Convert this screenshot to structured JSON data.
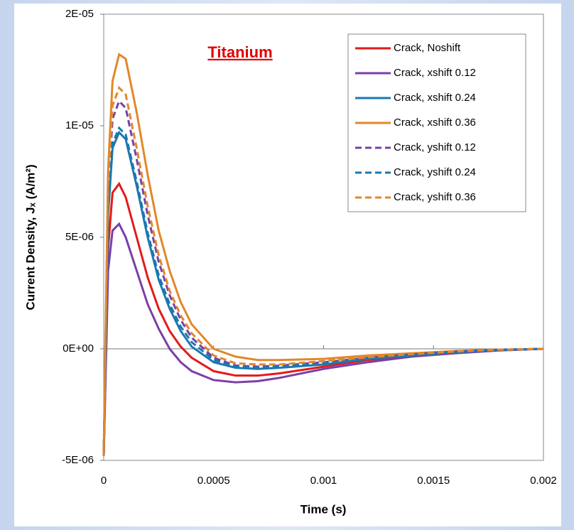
{
  "chart_data": {
    "type": "line",
    "title": "Titanium",
    "x_label": "Time (s)",
    "y_label": "Current Density, Jₓ (A/m²)",
    "x": [
      0,
      2e-05,
      4e-05,
      7e-05,
      0.0001,
      0.00015,
      0.0002,
      0.00025,
      0.0003,
      0.00035,
      0.0004,
      0.0005,
      0.0006,
      0.0007,
      0.0008,
      0.001,
      0.0012,
      0.0014,
      0.0016,
      0.0018,
      0.002
    ],
    "series": [
      {
        "name": "Crack, Noshift",
        "color": "#e31a1c",
        "dash": false,
        "values": [
          -4.8e-06,
          4.5e-06,
          7e-06,
          7.4e-06,
          6.8e-06,
          5e-06,
          3.2e-06,
          1.8e-06,
          8e-07,
          1e-07,
          -4e-07,
          -1e-06,
          -1.2e-06,
          -1.2e-06,
          -1.1e-06,
          -8e-07,
          -5e-07,
          -3e-07,
          -1.5e-07,
          -5e-08,
          0
        ]
      },
      {
        "name": "Crack, xshift 0.12",
        "color": "#7a3fa8",
        "dash": false,
        "values": [
          -4.8e-06,
          3.5e-06,
          5.3e-06,
          5.6e-06,
          5e-06,
          3.5e-06,
          2e-06,
          9e-07,
          0,
          -6e-07,
          -1e-06,
          -1.4e-06,
          -1.5e-06,
          -1.45e-06,
          -1.3e-06,
          -9e-07,
          -6e-07,
          -3.5e-07,
          -2e-07,
          -7e-08,
          0
        ]
      },
      {
        "name": "Crack, xshift 0.24",
        "color": "#1a78b0",
        "dash": false,
        "values": [
          -4.8e-06,
          6e-06,
          9e-06,
          9.7e-06,
          9.4e-06,
          7.3e-06,
          5e-06,
          3.1e-06,
          1.8e-06,
          8e-07,
          1e-07,
          -6e-07,
          -8.5e-07,
          -9e-07,
          -8.5e-07,
          -7e-07,
          -4.5e-07,
          -3e-07,
          -1.5e-07,
          -5e-08,
          0
        ]
      },
      {
        "name": "Crack, xshift 0.36",
        "color": "#e2872a",
        "dash": false,
        "values": [
          -4.8e-06,
          8e-06,
          1.2e-05,
          1.32e-05,
          1.3e-05,
          1.06e-05,
          7.8e-06,
          5.3e-06,
          3.5e-06,
          2.1e-06,
          1.1e-06,
          0,
          -3.5e-07,
          -5e-07,
          -5e-07,
          -4.5e-07,
          -3e-07,
          -2e-07,
          -1e-07,
          -3e-08,
          0
        ]
      },
      {
        "name": "Crack, yshift 0.12",
        "color": "#7a3fa8",
        "dash": true,
        "values": [
          -4.8e-06,
          7e-06,
          1.03e-05,
          1.11e-05,
          1.08e-05,
          8.5e-06,
          6e-06,
          3.9e-06,
          2.4e-06,
          1.3e-06,
          5e-07,
          -4e-07,
          -7.5e-07,
          -8e-07,
          -7.5e-07,
          -6e-07,
          -4e-07,
          -2.5e-07,
          -1.2e-07,
          -4e-08,
          0
        ]
      },
      {
        "name": "Crack, yshift 0.24",
        "color": "#1a78b0",
        "dash": true,
        "values": [
          -4.8e-06,
          6.2e-06,
          9.2e-06,
          9.9e-06,
          9.6e-06,
          7.5e-06,
          5.2e-06,
          3.3e-06,
          2e-06,
          1e-06,
          3e-07,
          -5e-07,
          -8e-07,
          -8.5e-07,
          -8e-07,
          -6.5e-07,
          -4.2e-07,
          -2.8e-07,
          -1.4e-07,
          -5e-08,
          0
        ]
      },
      {
        "name": "Crack, yshift 0.36",
        "color": "#e2872a",
        "dash": true,
        "values": [
          -4.8e-06,
          7.5e-06,
          1.09e-05,
          1.17e-05,
          1.14e-05,
          9e-06,
          6.4e-06,
          4.2e-06,
          2.6e-06,
          1.5e-06,
          7e-07,
          -3e-07,
          -6.5e-07,
          -7e-07,
          -7e-07,
          -5.5e-07,
          -3.8e-07,
          -2.4e-07,
          -1.2e-07,
          -4e-08,
          0
        ]
      }
    ],
    "xlim": [
      0,
      0.002
    ],
    "xticks": [
      0,
      0.0005,
      0.001,
      0.0015,
      0.002
    ],
    "ylim": [
      -5e-06,
      1.5e-05
    ],
    "yticks": [
      {
        "value": -5e-06,
        "label": "-5E-06"
      },
      {
        "value": 0,
        "label": "0E+00"
      },
      {
        "value": 5e-06,
        "label": "5E-06"
      },
      {
        "value": 1e-05,
        "label": "1E-05"
      },
      {
        "value": 1.5e-05,
        "label": "2E-05"
      }
    ],
    "grid": false,
    "legend": "upper right"
  }
}
